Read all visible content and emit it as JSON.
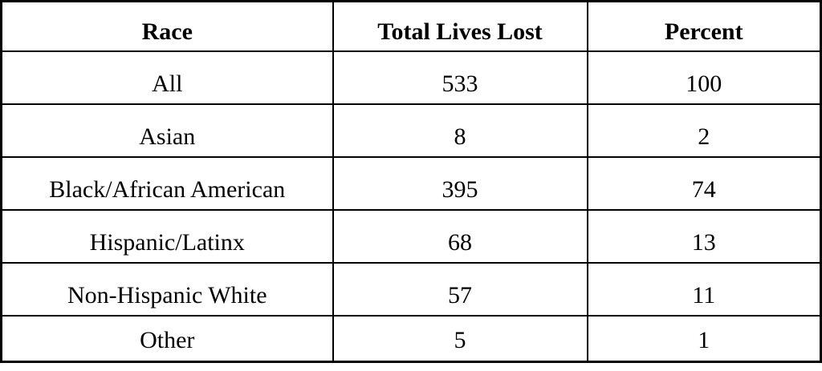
{
  "colors": {
    "background": "#ffffff",
    "border": "#000000",
    "text": "#000000"
  },
  "table": {
    "columns": [
      "Race",
      "Total Lives Lost",
      "Percent"
    ],
    "rows": [
      {
        "race": "All",
        "total": "533",
        "percent": "100"
      },
      {
        "race": "Asian",
        "total": "8",
        "percent": "2"
      },
      {
        "race": "Black/African American",
        "total": "395",
        "percent": "74"
      },
      {
        "race": "Hispanic/Latinx",
        "total": "68",
        "percent": "13"
      },
      {
        "race": "Non-Hispanic White",
        "total": "57",
        "percent": "11"
      },
      {
        "race": "Other",
        "total": "5",
        "percent": "1"
      }
    ]
  },
  "chart_data": {
    "type": "table",
    "title": "",
    "categories": [
      "All",
      "Asian",
      "Black/African American",
      "Hispanic/Latinx",
      "Non-Hispanic White",
      "Other"
    ],
    "series": [
      {
        "name": "Total Lives Lost",
        "values": [
          533,
          8,
          395,
          68,
          57,
          5
        ]
      },
      {
        "name": "Percent",
        "values": [
          100,
          2,
          74,
          13,
          11,
          1
        ]
      }
    ]
  }
}
